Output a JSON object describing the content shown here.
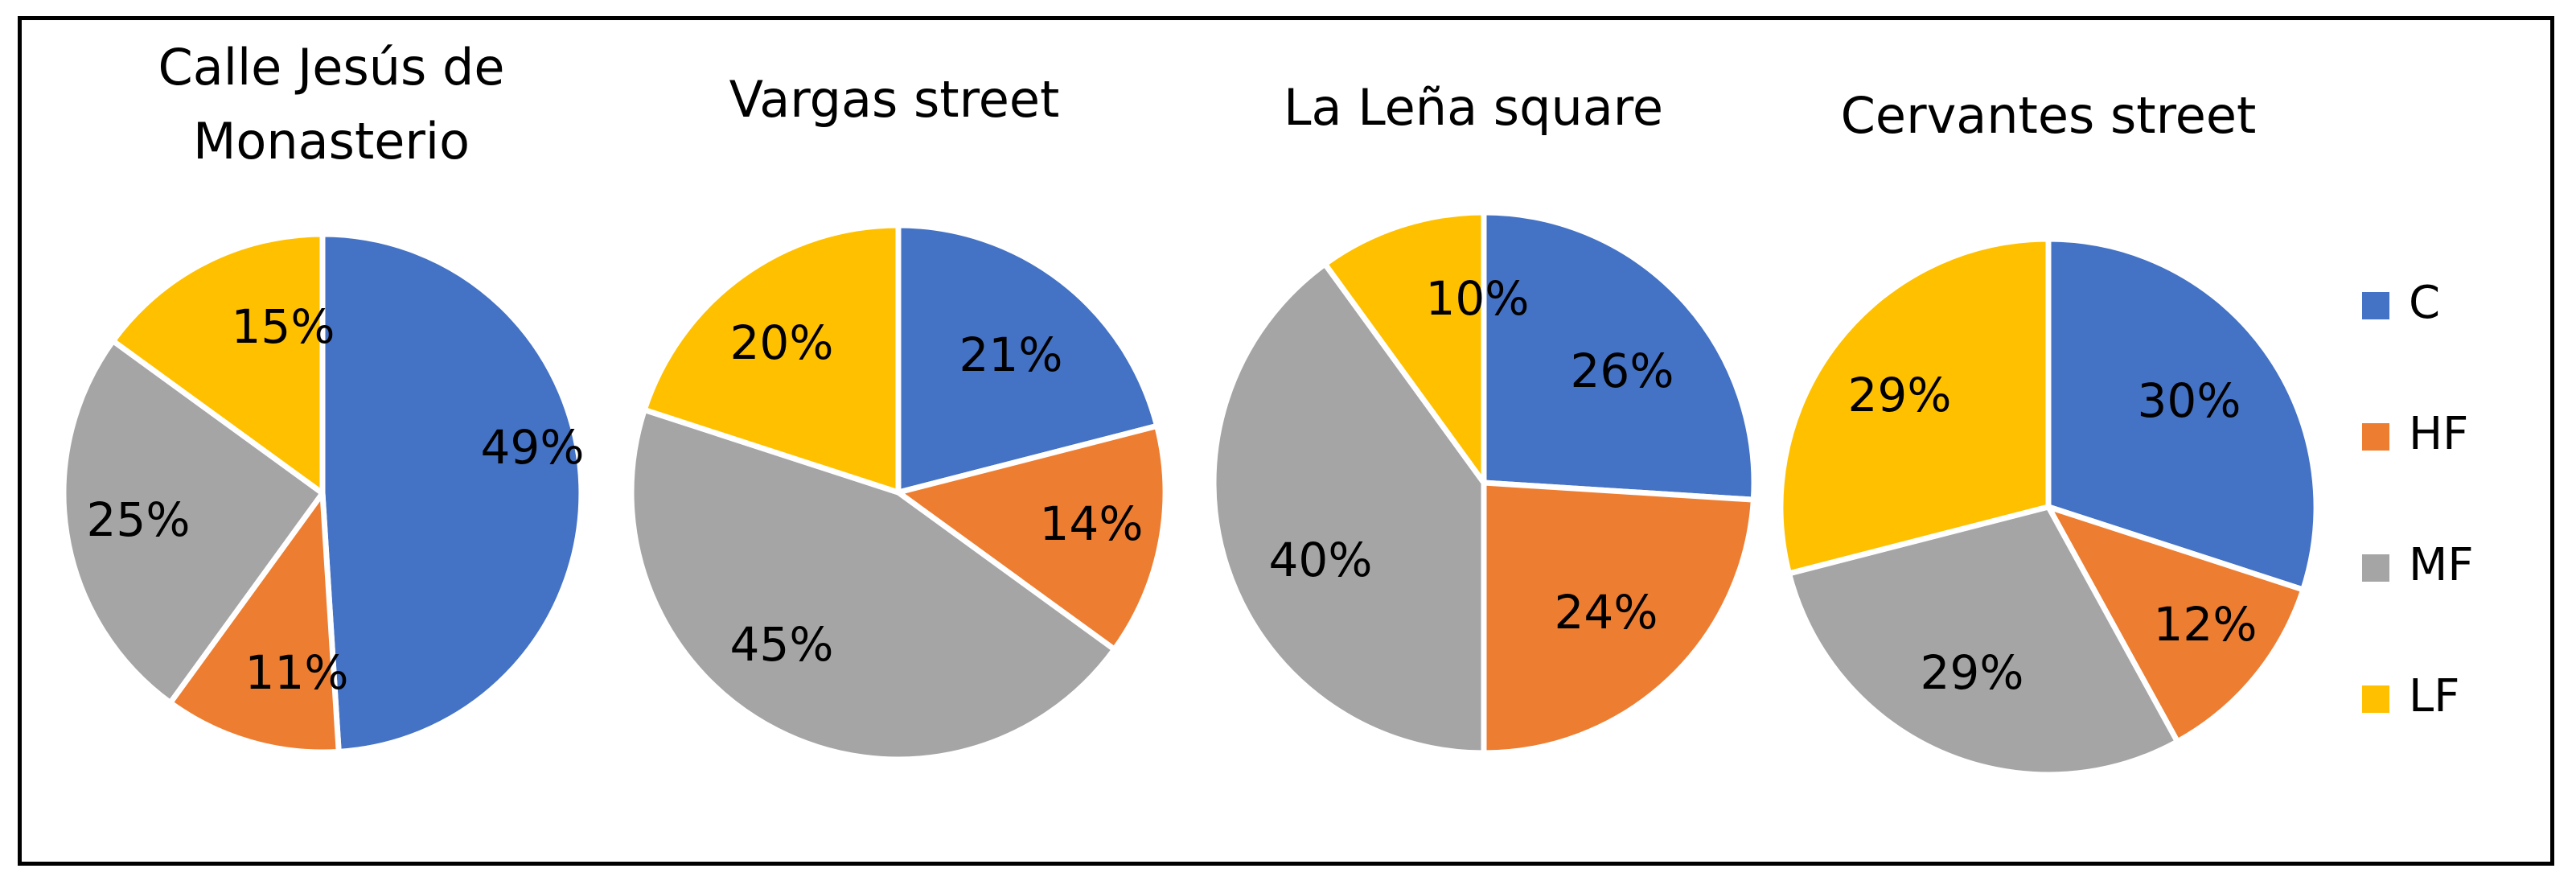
{
  "chart_data": [
    {
      "type": "pie",
      "title": "Calle Jesús de Monasterio",
      "title_lines": [
        "Calle Jesús de",
        "Monasterio"
      ],
      "categories": [
        "C",
        "HF",
        "MF",
        "LF"
      ],
      "values": [
        49,
        11,
        25,
        15
      ],
      "labels": [
        "49%",
        "11%",
        "25%",
        "15%"
      ]
    },
    {
      "type": "pie",
      "title": "Vargas street",
      "title_lines": [
        "Vargas street"
      ],
      "categories": [
        "C",
        "HF",
        "MF",
        "LF"
      ],
      "values": [
        21,
        14,
        45,
        20
      ],
      "labels": [
        "21%",
        "14%",
        "45%",
        "20%"
      ]
    },
    {
      "type": "pie",
      "title": "La Leña square",
      "title_lines": [
        "La Leña square"
      ],
      "categories": [
        "C",
        "HF",
        "MF",
        "LF"
      ],
      "values": [
        26,
        24,
        40,
        10
      ],
      "labels": [
        "26%",
        "24%",
        "40%",
        "10%"
      ]
    },
    {
      "type": "pie",
      "title": "Cervantes street",
      "title_lines": [
        "Cervantes street"
      ],
      "categories": [
        "C",
        "HF",
        "MF",
        "LF"
      ],
      "values": [
        30,
        12,
        29,
        29
      ],
      "labels": [
        "30%",
        "12%",
        "29%",
        "29%"
      ]
    }
  ],
  "legend": {
    "placement": "right",
    "items": [
      {
        "label": "C",
        "color": "#4472C4"
      },
      {
        "label": "HF",
        "color": "#ED7D31"
      },
      {
        "label": "MF",
        "color": "#A5A5A5"
      },
      {
        "label": "LF",
        "color": "#FFC000"
      }
    ]
  }
}
